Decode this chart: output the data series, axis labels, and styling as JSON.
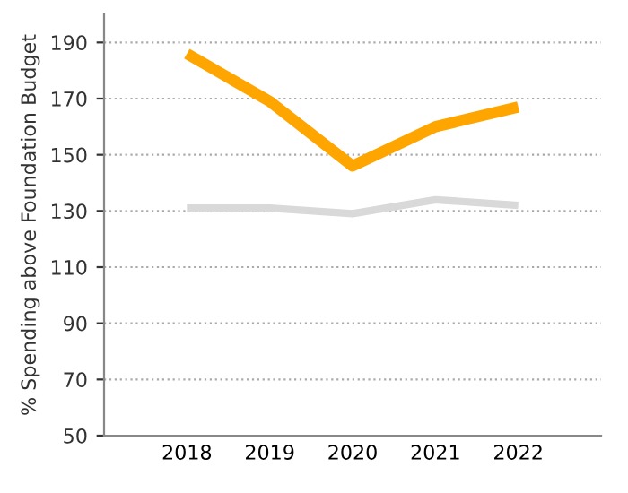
{
  "chart_data": {
    "type": "line",
    "ylabel": "% Spending above Foundation Budget",
    "categories": [
      "2018",
      "2019",
      "2020",
      "2021",
      "2022"
    ],
    "series": [
      {
        "color": "#ffa500",
        "values": [
          186,
          169,
          146,
          160,
          167
        ]
      },
      {
        "color": "#d9d9d9",
        "values": [
          131,
          131,
          129,
          134,
          132
        ]
      }
    ],
    "ylim": [
      50,
      200
    ],
    "yticks": [
      50,
      70,
      90,
      110,
      130,
      150,
      170,
      190
    ],
    "grid": "y",
    "marker": "none",
    "line_style": "solid",
    "legend": false
  }
}
